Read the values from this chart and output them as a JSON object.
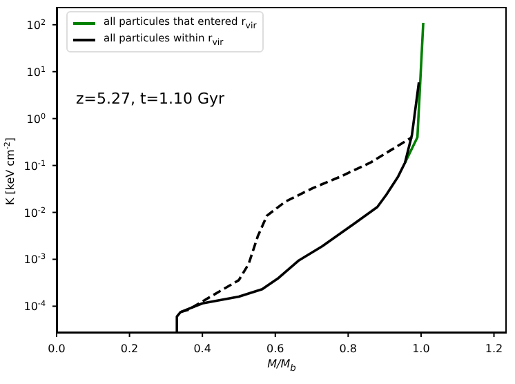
{
  "chart_data": {
    "type": "line",
    "xlabel": "M/M$_{b}$",
    "ylabel": "K [keV cm$^{-2}$]",
    "annotations": [
      "z=5.27, t=1.10 Gyr"
    ],
    "log": "y",
    "legend": "top left",
    "marker": "none",
    "xlim": [
      0,
      1.235
    ],
    "ylim": [
      2.7e-05,
      240
    ],
    "xticks": [
      {
        "value": 0,
        "label": "0.0"
      },
      0.2,
      0.4,
      0.6,
      0.8,
      {
        "value": 1,
        "label": "1.0"
      },
      1.2
    ],
    "yticks": [
      {
        "value": 0.0001,
        "label": "10$^{-4}$"
      },
      {
        "value": 0.001,
        "label": "10$^{-3}$"
      },
      {
        "value": 0.01,
        "label": "10$^{-2}$"
      },
      {
        "value": 0.1,
        "label": "10$^{-1}$"
      },
      {
        "value": 1,
        "label": "10$^{0}$"
      },
      {
        "value": 10,
        "label": "10$^{1}$"
      },
      {
        "value": 100,
        "label": "10$^{2}$"
      }
    ],
    "series": [
      {
        "name": "all particules that entered r$_{vir}$",
        "color": "#008000",
        "line_style": "solid",
        "x": [
          0.956,
          0.99,
          1.006
        ],
        "values": [
          0.115,
          0.4,
          110
        ]
      },
      {
        "name": "all particules within r$_{vir}$",
        "color": "#000000",
        "line_style": "solid",
        "x": [
          0.33,
          0.33,
          0.34,
          0.4,
          0.5,
          0.564,
          0.609,
          0.665,
          0.729,
          0.804,
          0.88,
          0.905,
          0.937,
          0.956,
          0.975,
          0.994
        ],
        "values": [
          2.7e-05,
          6e-05,
          7.5e-05,
          0.000115,
          0.00016,
          0.00023,
          0.0004,
          0.00095,
          0.0019,
          0.0049,
          0.013,
          0.024,
          0.058,
          0.115,
          0.45,
          5.9
        ]
      },
      {
        "color": "#000000",
        "line_style": "dashed",
        "x": [
          0.34,
          0.36,
          0.5,
          0.527,
          0.552,
          0.577,
          0.628,
          0.703,
          0.779,
          0.861,
          0.975
        ],
        "values": [
          7.5e-05,
          8.3e-05,
          0.00036,
          0.0008,
          0.0031,
          0.0085,
          0.017,
          0.033,
          0.058,
          0.115,
          0.4
        ]
      }
    ]
  }
}
